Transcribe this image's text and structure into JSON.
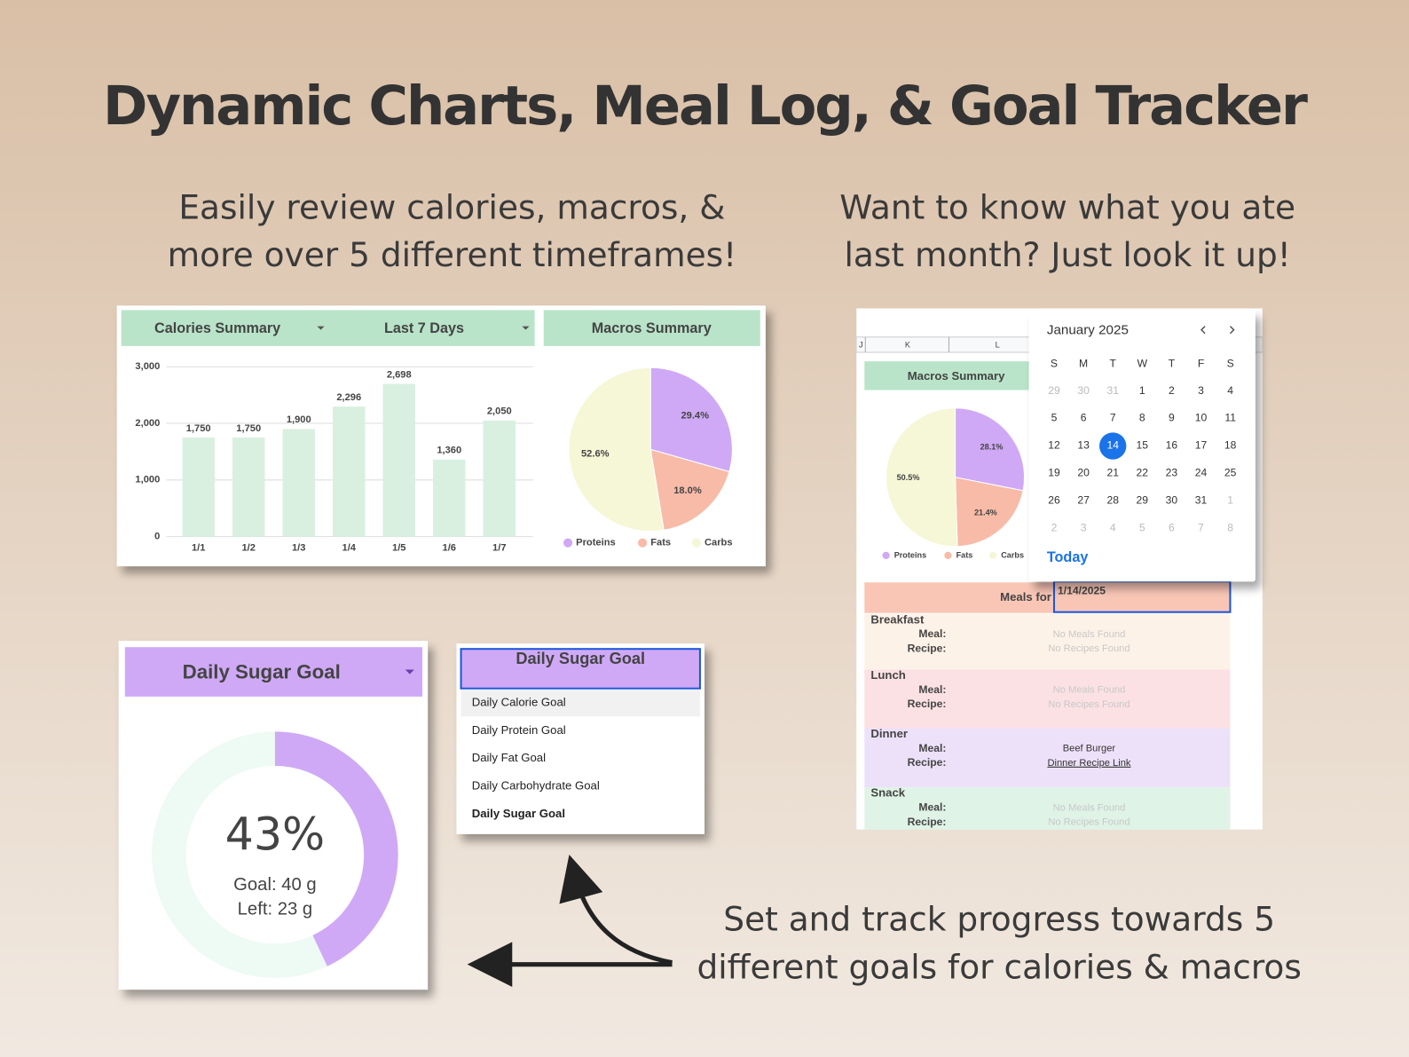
{
  "header": {
    "title": "Dynamic Charts, Meal Log, & Goal Tracker",
    "left_caption": [
      "Easily review calories, macros, &",
      "more over 5 different timeframes!"
    ],
    "right_caption": [
      "Want to know what you ate",
      "last month? Just look it up!"
    ],
    "bottom_caption": [
      "Set and track progress towards 5",
      "different goals for calories & macros"
    ]
  },
  "chart_data": [
    {
      "type": "bar",
      "filters": [
        "Calories Summary",
        "Last 7 Days"
      ],
      "categories": [
        "1/1",
        "1/2",
        "1/3",
        "1/4",
        "1/5",
        "1/6",
        "1/7"
      ],
      "values": [
        1750,
        1750,
        1900,
        2296,
        2698,
        1360,
        2050
      ],
      "value_labels": [
        "1,750",
        "1,750",
        "1,900",
        "2,296",
        "2,698",
        "1,360",
        "2,050"
      ],
      "color": "#d9f0e0",
      "ylim": [
        0,
        3000
      ],
      "yticks": [
        0,
        {
          "value": 1000,
          "label": "1,000"
        },
        {
          "value": 2000,
          "label": "2,000"
        },
        {
          "value": 3000,
          "label": "3,000"
        }
      ],
      "grid": true
    },
    {
      "type": "pie",
      "title": "Macros Summary",
      "categories": [
        "Proteins",
        "Fats",
        "Carbs"
      ],
      "values": [
        29.4,
        18.0,
        52.6
      ],
      "value_labels": [
        "29.4%",
        "18.0%",
        "52.6%"
      ],
      "colors": [
        "#cfa9f6",
        "#f8bba8",
        "#f5f7d6"
      ]
    },
    {
      "type": "pie",
      "title": "Macros Summary",
      "categories": [
        "Proteins",
        "Fats",
        "Carbs"
      ],
      "values": [
        28.1,
        21.4,
        50.5
      ],
      "value_labels": [
        "28.1%",
        "21.4%",
        "50.5%"
      ],
      "colors": [
        "#cfa9f6",
        "#f8bba8",
        "#f5f7d6"
      ]
    },
    {
      "type": "gauge",
      "title": "Daily Sugar Goal",
      "values": [
        43
      ],
      "value_labels": [
        "43%"
      ],
      "ylim": [
        0,
        100
      ],
      "color": "#cfa9f6",
      "annotations": [
        "Goal: 40 g",
        "Left: 23 g"
      ]
    }
  ],
  "dropdown": {
    "selected": "Daily Sugar Goal",
    "options": [
      "Daily Calorie Goal",
      "Daily Protein Goal",
      "Daily Fat Goal",
      "Daily Carbohydrate Goal",
      "Daily Sugar Goal"
    ]
  },
  "sheet": {
    "columns": [
      "J",
      "K",
      "L"
    ]
  },
  "calendar": {
    "month": "January 2025",
    "weekdays": [
      "S",
      "M",
      "T",
      "W",
      "T",
      "F",
      "S"
    ],
    "weeks": [
      [
        29,
        30,
        31,
        1,
        2,
        3,
        4
      ],
      [
        5,
        6,
        7,
        8,
        9,
        10,
        11
      ],
      [
        12,
        13,
        14,
        15,
        16,
        17,
        18
      ],
      [
        19,
        20,
        21,
        22,
        23,
        24,
        25
      ],
      [
        26,
        27,
        28,
        29,
        30,
        31,
        1
      ],
      [
        2,
        3,
        4,
        5,
        6,
        7,
        8
      ]
    ],
    "selected": 14,
    "today": "Today"
  },
  "meal_log": {
    "label": "Meals for",
    "date": "1/14/2025",
    "meal_label": "Meal:",
    "recipe_label": "Recipe:",
    "sections": [
      {
        "name": "Breakfast",
        "meal": "No Meals Found",
        "recipe": "No Recipes Found",
        "muted": true,
        "color": "#fdf2e7"
      },
      {
        "name": "Lunch",
        "meal": "No Meals Found",
        "recipe": "No Recipes Found",
        "muted": true,
        "color": "#fbe1e4"
      },
      {
        "name": "Dinner",
        "meal": "Beef Burger",
        "recipe": "Dinner Recipe Link",
        "muted": false,
        "link": true,
        "color": "#ede1f9"
      },
      {
        "name": "Snack",
        "meal": "No Meals Found",
        "recipe": "No Recipes Found",
        "muted": true,
        "color": "#dff3e7"
      }
    ]
  }
}
